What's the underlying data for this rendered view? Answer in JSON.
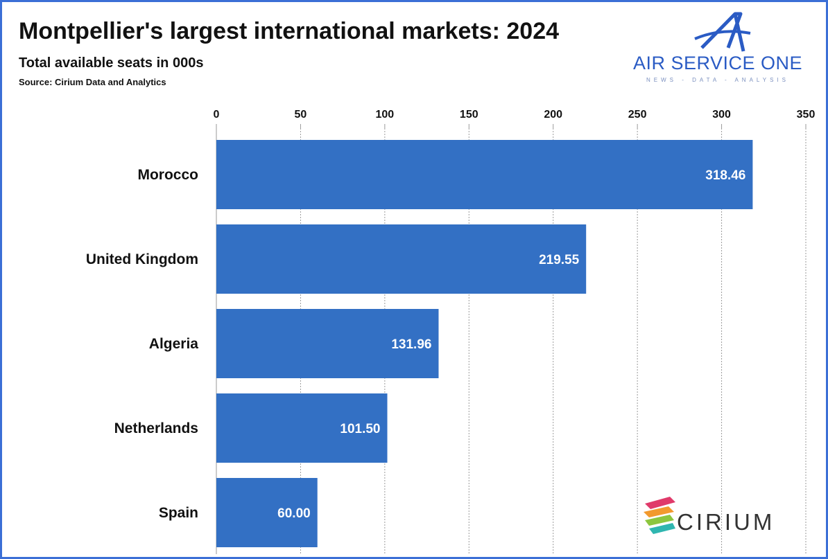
{
  "header": {
    "title": "Montpellier's largest international markets: 2024",
    "subtitle": "Total available seats in 000s",
    "source": "Source: Cirium Data and Analytics"
  },
  "logos": {
    "air_service_one": {
      "name": "AIR SERVICE ONE",
      "tagline": "NEWS - DATA - ANALYSIS",
      "color": "#2a5bc4"
    },
    "cirium": {
      "name": "CIRIUM"
    }
  },
  "colors": {
    "bar": "#3370c4",
    "frame": "#3b6fd6"
  },
  "chart_data": {
    "type": "bar",
    "orientation": "horizontal",
    "categories": [
      "Morocco",
      "United Kingdom",
      "Algeria",
      "Netherlands",
      "Spain"
    ],
    "values": [
      318.46,
      219.55,
      131.96,
      101.5,
      60.0
    ],
    "value_labels": [
      "318.46",
      "219.55",
      "131.96",
      "101.50",
      "60.00"
    ],
    "title": "Montpellier's largest international markets: 2024",
    "subtitle": "Total available seats in 000s",
    "xlim": [
      0,
      350
    ],
    "x_ticks": [
      0,
      50,
      100,
      150,
      200,
      250,
      300,
      350
    ],
    "x_axis_position": "top",
    "grid": "vertical dashed",
    "legend": "none"
  }
}
